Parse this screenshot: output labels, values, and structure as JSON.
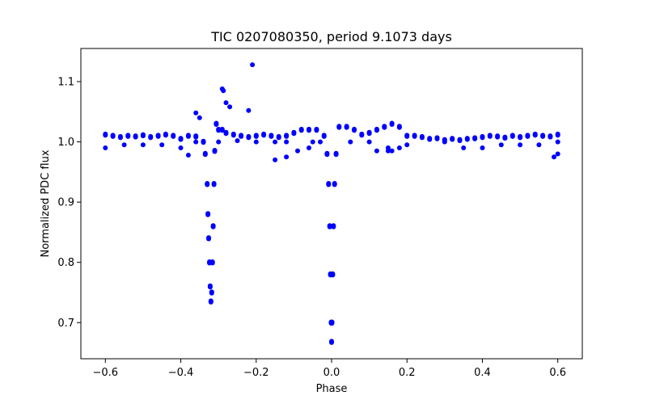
{
  "chart_data": {
    "type": "scatter",
    "title": "TIC 0207080350, period 9.1073 days",
    "xlabel": "Phase",
    "ylabel": "Normalized PDC flux",
    "xlim": [
      -0.665,
      0.665
    ],
    "ylim": [
      0.64,
      1.155
    ],
    "xticks": [
      -0.6,
      -0.4,
      -0.2,
      0.0,
      0.2,
      0.4,
      0.6
    ],
    "xtick_labels": [
      "−0.6",
      "−0.4",
      "−0.2",
      "0.0",
      "0.2",
      "0.4",
      "0.6"
    ],
    "yticks": [
      0.7,
      0.8,
      0.9,
      1.0,
      1.1
    ],
    "ytick_labels": [
      "0.7",
      "0.8",
      "0.9",
      "1.0",
      "1.1"
    ],
    "grid": false,
    "legend": "none",
    "marker_color": "#0000ff",
    "series": [
      {
        "x": [
          -0.6,
          -0.58,
          -0.56,
          -0.54,
          -0.52,
          -0.5,
          -0.48,
          -0.46,
          -0.44,
          -0.42,
          -0.4,
          -0.38,
          -0.36,
          -0.34,
          -0.335,
          -0.33,
          -0.328,
          -0.326,
          -0.324,
          -0.322,
          -0.32,
          -0.318,
          -0.316,
          -0.314,
          -0.312,
          -0.31,
          -0.306,
          -0.3,
          -0.29,
          -0.28,
          -0.26,
          -0.24,
          -0.22,
          -0.2,
          -0.18,
          -0.16,
          -0.14,
          -0.12,
          -0.1,
          -0.08,
          -0.06,
          -0.04,
          -0.02,
          -0.012,
          -0.008,
          -0.005,
          -0.003,
          -0.001,
          0.0,
          0.001,
          0.003,
          0.005,
          0.008,
          0.012,
          0.02,
          0.04,
          0.06,
          0.08,
          0.1,
          0.12,
          0.14,
          0.16,
          0.18,
          0.2,
          0.22,
          0.24,
          0.26,
          0.28,
          0.3,
          0.32,
          0.34,
          0.36,
          0.38,
          0.4,
          0.42,
          0.44,
          0.46,
          0.48,
          0.5,
          0.52,
          0.54,
          0.56,
          0.58,
          0.6,
          -0.6,
          -0.55,
          -0.5,
          -0.45,
          -0.4,
          -0.36,
          -0.3,
          -0.25,
          -0.2,
          -0.15,
          -0.12,
          -0.05,
          0.05,
          0.1,
          0.15,
          0.2,
          0.3,
          0.35,
          0.4,
          0.45,
          0.5,
          0.55,
          0.6,
          -0.38,
          -0.36,
          -0.35,
          -0.29,
          -0.287,
          -0.28,
          -0.27,
          -0.22,
          -0.21,
          -0.15,
          -0.12,
          -0.09,
          -0.06,
          -0.03,
          0.12,
          0.15,
          0.16,
          0.18,
          0.59,
          0.6
        ],
        "y": [
          1.012,
          1.01,
          1.008,
          1.01,
          1.009,
          1.011,
          1.008,
          1.01,
          1.012,
          1.01,
          1.005,
          1.01,
          1.009,
          1.0,
          0.98,
          0.93,
          0.88,
          0.84,
          0.8,
          0.76,
          0.735,
          0.75,
          0.8,
          0.86,
          0.93,
          0.985,
          1.03,
          1.02,
          1.02,
          1.015,
          1.012,
          1.01,
          1.008,
          1.01,
          1.012,
          1.01,
          1.008,
          1.01,
          1.015,
          1.02,
          1.02,
          1.02,
          1.01,
          0.98,
          0.93,
          0.86,
          0.78,
          0.7,
          0.668,
          0.7,
          0.78,
          0.86,
          0.93,
          0.98,
          1.025,
          1.025,
          1.02,
          1.012,
          1.015,
          1.02,
          1.025,
          1.03,
          1.025,
          1.01,
          1.01,
          1.008,
          1.005,
          1.006,
          1.003,
          1.005,
          1.003,
          1.005,
          1.006,
          1.008,
          1.01,
          1.009,
          1.007,
          1.01,
          1.008,
          1.01,
          1.012,
          1.01,
          1.009,
          1.012,
          0.99,
          0.995,
          0.995,
          0.995,
          0.99,
          1.0,
          1.0,
          1.002,
          1.0,
          1.0,
          1.0,
          1.0,
          1.0,
          1.0,
          0.985,
          0.995,
          1.0,
          0.99,
          0.99,
          0.995,
          0.995,
          0.995,
          1.0,
          0.978,
          1.048,
          1.04,
          1.088,
          1.085,
          1.065,
          1.058,
          1.052,
          1.128,
          0.97,
          0.975,
          0.985,
          0.99,
          1.0,
          0.985,
          0.99,
          0.985,
          0.99,
          0.975,
          0.98
        ],
        "thickness": [
          0.01,
          0.01,
          0.01,
          0.01,
          0.01,
          0.01,
          0.01,
          0.01,
          0.01,
          0.01,
          0.01,
          0.01,
          0.01,
          0.01,
          0.01,
          0.01,
          0.01,
          0.01,
          0.01,
          0.01,
          0.01,
          0.01,
          0.01,
          0.01,
          0.01,
          0.01,
          0.01,
          0.01,
          0.01,
          0.01,
          0.01,
          0.01,
          0.01,
          0.01,
          0.01,
          0.01,
          0.01,
          0.01,
          0.01,
          0.01,
          0.01,
          0.01,
          0.01,
          0.01,
          0.01,
          0.01,
          0.01,
          0.01,
          0.01,
          0.01,
          0.01,
          0.01,
          0.01,
          0.01,
          0.01,
          0.01,
          0.01,
          0.01,
          0.01,
          0.01,
          0.01,
          0.01,
          0.01,
          0.01,
          0.01,
          0.01,
          0.01,
          0.01,
          0.01,
          0.01,
          0.01,
          0.01,
          0.01,
          0.01,
          0.01,
          0.01,
          0.01,
          0.01,
          0.01,
          0.01,
          0.01,
          0.01,
          0.01,
          0.01,
          0,
          0,
          0,
          0,
          0,
          0,
          0,
          0,
          0,
          0,
          0,
          0,
          0,
          0,
          0,
          0,
          0,
          0,
          0,
          0,
          0,
          0,
          0,
          0,
          0,
          0,
          0,
          0,
          0,
          0,
          0,
          0,
          0,
          0,
          0,
          0,
          0,
          0,
          0,
          0,
          0,
          0,
          0
        ]
      }
    ]
  }
}
